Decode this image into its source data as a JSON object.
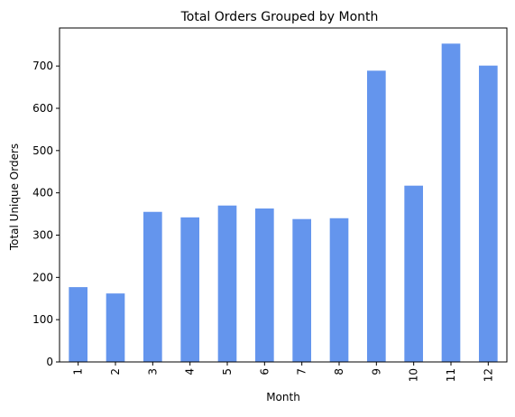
{
  "chart_data": {
    "type": "bar",
    "title": "Total Orders Grouped by Month",
    "xlabel": "Month",
    "ylabel": "Total Unique Orders",
    "categories": [
      "1",
      "2",
      "3",
      "4",
      "5",
      "6",
      "7",
      "8",
      "9",
      "10",
      "11",
      "12"
    ],
    "values": [
      177,
      162,
      355,
      342,
      370,
      363,
      338,
      340,
      689,
      417,
      753,
      701
    ],
    "ylim": [
      0,
      790
    ],
    "yticks": [
      0,
      100,
      200,
      300,
      400,
      500,
      600,
      700
    ],
    "grid": false,
    "legend": "none",
    "bar_color": "#6495ed"
  }
}
